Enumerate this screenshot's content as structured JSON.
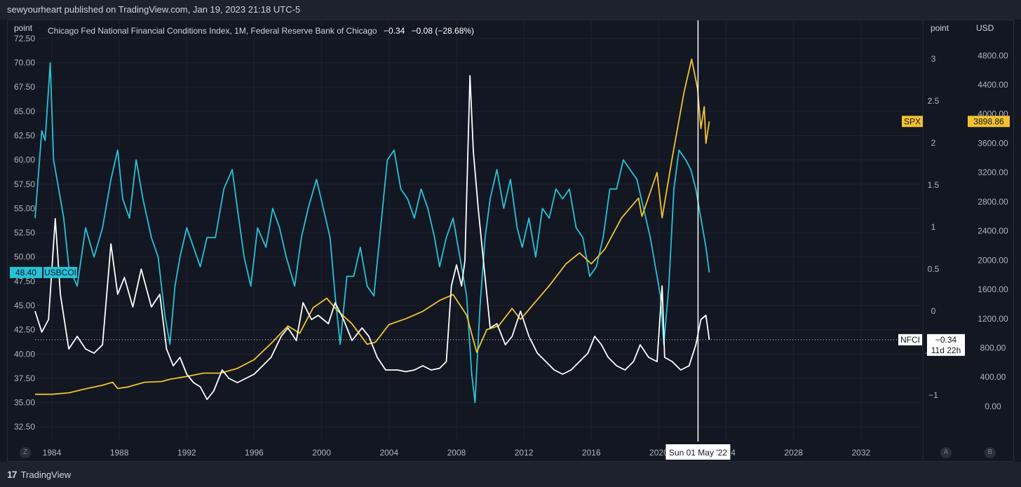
{
  "header": {
    "publish_text": "sewyourheart published on TradingView.com, Jan 19, 2023 21:18 UTC-5"
  },
  "legend": {
    "title": "Chicago Fed National Financial Conditions Index, 1M, Federal Reserve Bank of Chicago",
    "value": "−0.34",
    "change": "−0.08 (−28.68%)"
  },
  "axes": {
    "left_unit": "point",
    "right_unit": "point",
    "usd_unit": "USD",
    "left_ticks": [
      "72.50",
      "70.00",
      "67.50",
      "65.00",
      "62.50",
      "60.00",
      "57.50",
      "55.00",
      "52.50",
      "50.00",
      "47.50",
      "45.00",
      "42.50",
      "40.00",
      "37.50",
      "35.00",
      "32.50"
    ],
    "right_ticks": [
      "3",
      "2.5",
      "2",
      "1.5",
      "1",
      "0.5",
      "0",
      "−0.5",
      "−1"
    ],
    "usd_ticks": [
      "4800.00",
      "4400.00",
      "4000.00",
      "3600.00",
      "3200.00",
      "2800.00",
      "2400.00",
      "2000.00",
      "1600.00",
      "1200.00",
      "800.00",
      "400.00",
      "0.00"
    ],
    "x_ticks": [
      "1984",
      "1988",
      "1992",
      "1996",
      "2000",
      "2004",
      "2008",
      "2012",
      "2016",
      "2020",
      "2024",
      "2028",
      "2032"
    ]
  },
  "badges": {
    "usbcoi_value": "48.40",
    "usbcoi_label": "USBCOI",
    "spx_label": "SPX",
    "spx_value": "3898.86",
    "nfci_label": "NFCI",
    "nfci_value": "−0.34",
    "nfci_time": "11d 22h"
  },
  "crosshair": {
    "label": "Sun 01 May '22"
  },
  "footer": {
    "brand": "TradingView",
    "btn_z": "Z",
    "btn_a": "A",
    "btn_b": "B"
  },
  "colors": {
    "usbcoi": "#27c2d6",
    "spx": "#f2c230",
    "nfci": "#ffffff",
    "bg": "#131722",
    "grid": "#1f2330"
  },
  "chart_data": {
    "type": "line",
    "x_range": [
      1983.0,
      2035.5
    ],
    "series": [
      {
        "name": "USBCOI",
        "axis": "left",
        "ylim": [
          31.0,
          73.0
        ],
        "points": [
          [
            1983.0,
            54
          ],
          [
            1983.4,
            63
          ],
          [
            1983.6,
            62
          ],
          [
            1983.9,
            70
          ],
          [
            1984.1,
            60
          ],
          [
            1984.4,
            57
          ],
          [
            1984.7,
            54
          ],
          [
            1985.0,
            49
          ],
          [
            1985.5,
            47
          ],
          [
            1986.0,
            53
          ],
          [
            1986.5,
            50
          ],
          [
            1987.0,
            53
          ],
          [
            1987.5,
            58
          ],
          [
            1987.9,
            61
          ],
          [
            1988.2,
            56
          ],
          [
            1988.6,
            54
          ],
          [
            1989.0,
            60
          ],
          [
            1989.4,
            56
          ],
          [
            1989.9,
            52
          ],
          [
            1990.3,
            50
          ],
          [
            1990.7,
            44
          ],
          [
            1991.0,
            41
          ],
          [
            1991.3,
            47
          ],
          [
            1991.6,
            50
          ],
          [
            1992.0,
            53
          ],
          [
            1992.4,
            51
          ],
          [
            1992.8,
            49
          ],
          [
            1993.2,
            52
          ],
          [
            1993.7,
            52
          ],
          [
            1994.2,
            57
          ],
          [
            1994.7,
            59
          ],
          [
            1995.0,
            55
          ],
          [
            1995.4,
            50
          ],
          [
            1995.8,
            47
          ],
          [
            1996.2,
            53
          ],
          [
            1996.7,
            51
          ],
          [
            1997.1,
            55
          ],
          [
            1997.5,
            53
          ],
          [
            1997.9,
            50
          ],
          [
            1998.4,
            47
          ],
          [
            1998.8,
            52
          ],
          [
            1999.2,
            55
          ],
          [
            1999.7,
            58
          ],
          [
            2000.1,
            55
          ],
          [
            2000.5,
            52
          ],
          [
            2000.8,
            46
          ],
          [
            2001.1,
            41
          ],
          [
            2001.5,
            48
          ],
          [
            2001.9,
            48
          ],
          [
            2002.3,
            51
          ],
          [
            2002.7,
            47
          ],
          [
            2003.1,
            46
          ],
          [
            2003.5,
            53
          ],
          [
            2003.9,
            60
          ],
          [
            2004.3,
            61
          ],
          [
            2004.7,
            57
          ],
          [
            2005.1,
            56
          ],
          [
            2005.5,
            54
          ],
          [
            2005.9,
            57
          ],
          [
            2006.3,
            55
          ],
          [
            2006.7,
            52
          ],
          [
            2007.0,
            49
          ],
          [
            2007.4,
            52
          ],
          [
            2007.8,
            54
          ],
          [
            2008.2,
            50
          ],
          [
            2008.6,
            46
          ],
          [
            2008.9,
            38
          ],
          [
            2009.1,
            35
          ],
          [
            2009.4,
            45
          ],
          [
            2009.7,
            52
          ],
          [
            2010.0,
            56
          ],
          [
            2010.4,
            59
          ],
          [
            2010.8,
            55
          ],
          [
            2011.2,
            58
          ],
          [
            2011.6,
            53
          ],
          [
            2011.9,
            51
          ],
          [
            2012.3,
            54
          ],
          [
            2012.7,
            50
          ],
          [
            2013.1,
            55
          ],
          [
            2013.5,
            54
          ],
          [
            2013.9,
            57
          ],
          [
            2014.3,
            56
          ],
          [
            2014.7,
            57
          ],
          [
            2015.1,
            53
          ],
          [
            2015.5,
            52
          ],
          [
            2015.9,
            48
          ],
          [
            2016.3,
            49
          ],
          [
            2016.7,
            52
          ],
          [
            2017.1,
            57
          ],
          [
            2017.5,
            57
          ],
          [
            2017.9,
            60
          ],
          [
            2018.3,
            59
          ],
          [
            2018.7,
            58
          ],
          [
            2019.1,
            55
          ],
          [
            2019.5,
            52
          ],
          [
            2019.9,
            48
          ],
          [
            2020.1,
            46
          ],
          [
            2020.3,
            41
          ],
          [
            2020.6,
            47
          ],
          [
            2020.9,
            57
          ],
          [
            2021.2,
            61
          ],
          [
            2021.6,
            60
          ],
          [
            2021.9,
            59
          ],
          [
            2022.2,
            57
          ],
          [
            2022.5,
            54
          ],
          [
            2022.8,
            51
          ],
          [
            2023.0,
            48.4
          ]
        ]
      },
      {
        "name": "SPX",
        "axis": "usd",
        "ylim": [
          -480,
          5100
        ],
        "points": [
          [
            1983.0,
            165
          ],
          [
            1984.0,
            165
          ],
          [
            1985.0,
            185
          ],
          [
            1986.0,
            240
          ],
          [
            1987.0,
            290
          ],
          [
            1987.6,
            330
          ],
          [
            1987.9,
            245
          ],
          [
            1988.5,
            265
          ],
          [
            1989.5,
            330
          ],
          [
            1990.5,
            340
          ],
          [
            1991.0,
            370
          ],
          [
            1992.0,
            410
          ],
          [
            1993.0,
            455
          ],
          [
            1994.0,
            455
          ],
          [
            1995.0,
            520
          ],
          [
            1996.0,
            640
          ],
          [
            1997.0,
            860
          ],
          [
            1998.0,
            1100
          ],
          [
            1998.7,
            1000
          ],
          [
            1999.5,
            1350
          ],
          [
            2000.3,
            1480
          ],
          [
            2000.9,
            1320
          ],
          [
            2001.8,
            1130
          ],
          [
            2002.7,
            850
          ],
          [
            2003.2,
            880
          ],
          [
            2004.0,
            1120
          ],
          [
            2005.0,
            1200
          ],
          [
            2006.0,
            1300
          ],
          [
            2007.0,
            1450
          ],
          [
            2007.8,
            1530
          ],
          [
            2008.6,
            1250
          ],
          [
            2009.2,
            740
          ],
          [
            2009.8,
            1050
          ],
          [
            2010.5,
            1100
          ],
          [
            2011.3,
            1340
          ],
          [
            2011.8,
            1190
          ],
          [
            2012.5,
            1380
          ],
          [
            2013.5,
            1650
          ],
          [
            2014.5,
            1950
          ],
          [
            2015.3,
            2100
          ],
          [
            2016.0,
            1950
          ],
          [
            2016.8,
            2150
          ],
          [
            2017.8,
            2580
          ],
          [
            2018.8,
            2850
          ],
          [
            2019.0,
            2600
          ],
          [
            2019.9,
            3200
          ],
          [
            2020.2,
            2580
          ],
          [
            2020.8,
            3400
          ],
          [
            2021.5,
            4300
          ],
          [
            2021.95,
            4750
          ],
          [
            2022.3,
            4350
          ],
          [
            2022.5,
            3800
          ],
          [
            2022.7,
            4100
          ],
          [
            2022.8,
            3600
          ],
          [
            2023.0,
            3898.86
          ]
        ]
      },
      {
        "name": "NFCI",
        "axis": "right",
        "ylim": [
          -1.55,
          3.3
        ],
        "points": [
          [
            1983.0,
            0.0
          ],
          [
            1983.4,
            -0.25
          ],
          [
            1983.8,
            -0.1
          ],
          [
            1984.2,
            1.1
          ],
          [
            1984.5,
            0.2
          ],
          [
            1985.0,
            -0.45
          ],
          [
            1985.5,
            -0.3
          ],
          [
            1986.0,
            -0.45
          ],
          [
            1986.5,
            -0.5
          ],
          [
            1987.0,
            -0.4
          ],
          [
            1987.5,
            0.8
          ],
          [
            1987.9,
            0.2
          ],
          [
            1988.3,
            0.4
          ],
          [
            1988.8,
            0.05
          ],
          [
            1989.3,
            0.5
          ],
          [
            1989.9,
            0.05
          ],
          [
            1990.4,
            0.2
          ],
          [
            1990.8,
            -0.45
          ],
          [
            1991.2,
            -0.65
          ],
          [
            1991.6,
            -0.55
          ],
          [
            1992.0,
            -0.75
          ],
          [
            1992.4,
            -0.85
          ],
          [
            1992.8,
            -0.9
          ],
          [
            1993.2,
            -1.05
          ],
          [
            1993.6,
            -0.95
          ],
          [
            1994.1,
            -0.7
          ],
          [
            1994.5,
            -0.8
          ],
          [
            1995.0,
            -0.85
          ],
          [
            1995.5,
            -0.8
          ],
          [
            1996.0,
            -0.75
          ],
          [
            1996.5,
            -0.65
          ],
          [
            1997.0,
            -0.55
          ],
          [
            1997.6,
            -0.3
          ],
          [
            1998.0,
            -0.2
          ],
          [
            1998.5,
            -0.35
          ],
          [
            1998.9,
            0.1
          ],
          [
            1999.4,
            -0.1
          ],
          [
            1999.8,
            -0.05
          ],
          [
            2000.4,
            -0.15
          ],
          [
            2000.8,
            0.1
          ],
          [
            2001.3,
            -0.1
          ],
          [
            2001.8,
            -0.35
          ],
          [
            2002.4,
            -0.2
          ],
          [
            2002.8,
            -0.3
          ],
          [
            2003.3,
            -0.55
          ],
          [
            2003.8,
            -0.7
          ],
          [
            2004.5,
            -0.7
          ],
          [
            2005.0,
            -0.72
          ],
          [
            2005.5,
            -0.7
          ],
          [
            2006.0,
            -0.65
          ],
          [
            2006.5,
            -0.7
          ],
          [
            2007.0,
            -0.68
          ],
          [
            2007.4,
            -0.6
          ],
          [
            2007.7,
            0.3
          ],
          [
            2008.0,
            0.55
          ],
          [
            2008.3,
            0.3
          ],
          [
            2008.5,
            0.6
          ],
          [
            2008.8,
            2.8
          ],
          [
            2009.0,
            1.9
          ],
          [
            2009.3,
            1.2
          ],
          [
            2009.6,
            0.6
          ],
          [
            2010.0,
            -0.2
          ],
          [
            2010.4,
            -0.15
          ],
          [
            2010.9,
            -0.4
          ],
          [
            2011.3,
            -0.3
          ],
          [
            2011.8,
            0.0
          ],
          [
            2012.3,
            -0.3
          ],
          [
            2012.8,
            -0.5
          ],
          [
            2013.3,
            -0.6
          ],
          [
            2013.8,
            -0.7
          ],
          [
            2014.3,
            -0.75
          ],
          [
            2014.8,
            -0.7
          ],
          [
            2015.3,
            -0.6
          ],
          [
            2015.8,
            -0.5
          ],
          [
            2016.2,
            -0.3
          ],
          [
            2016.6,
            -0.4
          ],
          [
            2017.0,
            -0.55
          ],
          [
            2017.5,
            -0.65
          ],
          [
            2018.0,
            -0.7
          ],
          [
            2018.5,
            -0.6
          ],
          [
            2018.9,
            -0.4
          ],
          [
            2019.4,
            -0.55
          ],
          [
            2019.9,
            -0.6
          ],
          [
            2020.2,
            0.3
          ],
          [
            2020.35,
            -0.55
          ],
          [
            2020.8,
            -0.6
          ],
          [
            2021.3,
            -0.7
          ],
          [
            2021.8,
            -0.65
          ],
          [
            2022.2,
            -0.4
          ],
          [
            2022.5,
            -0.1
          ],
          [
            2022.8,
            -0.05
          ],
          [
            2023.0,
            -0.34
          ]
        ]
      }
    ],
    "crosshair_x": 2022.33,
    "price_line_nfci": -0.34
  }
}
